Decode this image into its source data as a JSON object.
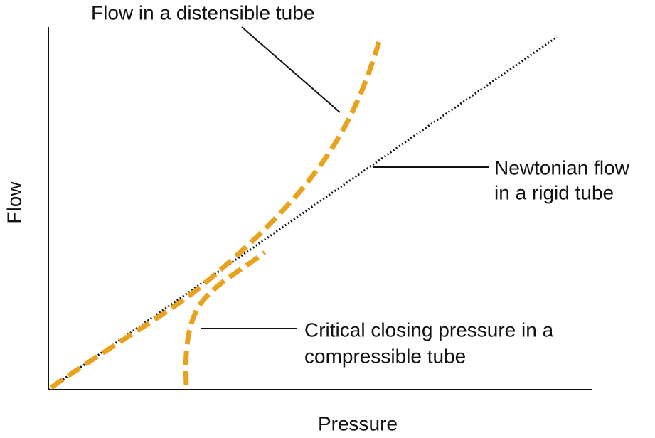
{
  "axes": {
    "x_label": "Pressure",
    "y_label": "Flow"
  },
  "annotations": {
    "distensible": [
      "Flow in a distensible tube"
    ],
    "newtonian": [
      "Newtonian flow",
      "in a rigid tube"
    ],
    "compressible": [
      "Critical closing pressure in a",
      "compressible tube"
    ]
  }
}
